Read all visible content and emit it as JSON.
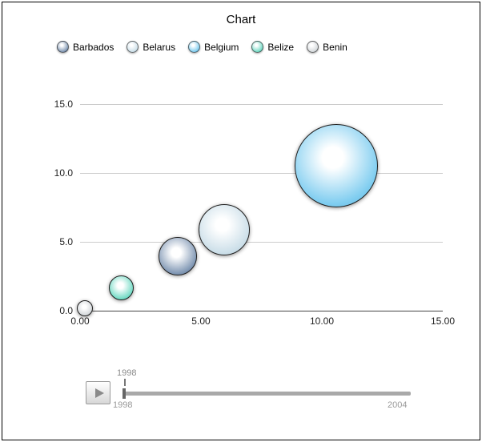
{
  "title": "Chart",
  "legend": {
    "items": [
      {
        "label": "Barbados",
        "color": "#8097b4",
        "dark": "#49597a"
      },
      {
        "label": "Belarus",
        "color": "#ccdfe9",
        "dark": "#a8c2cf"
      },
      {
        "label": "Belgium",
        "color": "#7fcdf0",
        "dark": "#5aaed6"
      },
      {
        "label": "Belize",
        "color": "#74dbc6",
        "dark": "#3fbfa4"
      },
      {
        "label": "Benin",
        "color": "#d5d9dc",
        "dark": "#9ba1a6"
      }
    ]
  },
  "chart_data": {
    "type": "scatter",
    "subtype": "bubble",
    "title": "Chart",
    "xlabel": "",
    "ylabel": "",
    "xlim": [
      0,
      15
    ],
    "ylim": [
      0,
      15
    ],
    "grid": true,
    "x_ticks": [
      {
        "value": 0,
        "label": "0.00"
      },
      {
        "value": 5,
        "label": "5.00"
      },
      {
        "value": 10,
        "label": "10.00"
      },
      {
        "value": 15,
        "label": "15.00"
      }
    ],
    "y_ticks": [
      {
        "value": 0,
        "label": "0.0"
      },
      {
        "value": 5,
        "label": "5.0"
      },
      {
        "value": 10,
        "label": "10.0"
      },
      {
        "value": 15,
        "label": "15.0"
      }
    ],
    "series": [
      {
        "name": "Benin",
        "x": 0.2,
        "y": 0.15,
        "diameter": 20,
        "color": "#d5d9dc",
        "dark": "#9ba1a6"
      },
      {
        "name": "Belize",
        "x": 1.7,
        "y": 1.65,
        "diameter": 31,
        "color": "#74dbc6",
        "dark": "#3fbfa4"
      },
      {
        "name": "Barbados",
        "x": 4.05,
        "y": 3.95,
        "diameter": 48,
        "color": "#8097b4",
        "dark": "#49597a"
      },
      {
        "name": "Belarus",
        "x": 5.95,
        "y": 5.9,
        "diameter": 64,
        "color": "#ccdfe9",
        "dark": "#a8c2cf"
      },
      {
        "name": "Belgium",
        "x": 10.6,
        "y": 10.5,
        "diameter": 104,
        "color": "#7fcdf0",
        "dark": "#5aaed6"
      }
    ]
  },
  "controls": {
    "slider": {
      "current_value": "1998",
      "min_label": "1998",
      "max_label": "2004"
    }
  }
}
